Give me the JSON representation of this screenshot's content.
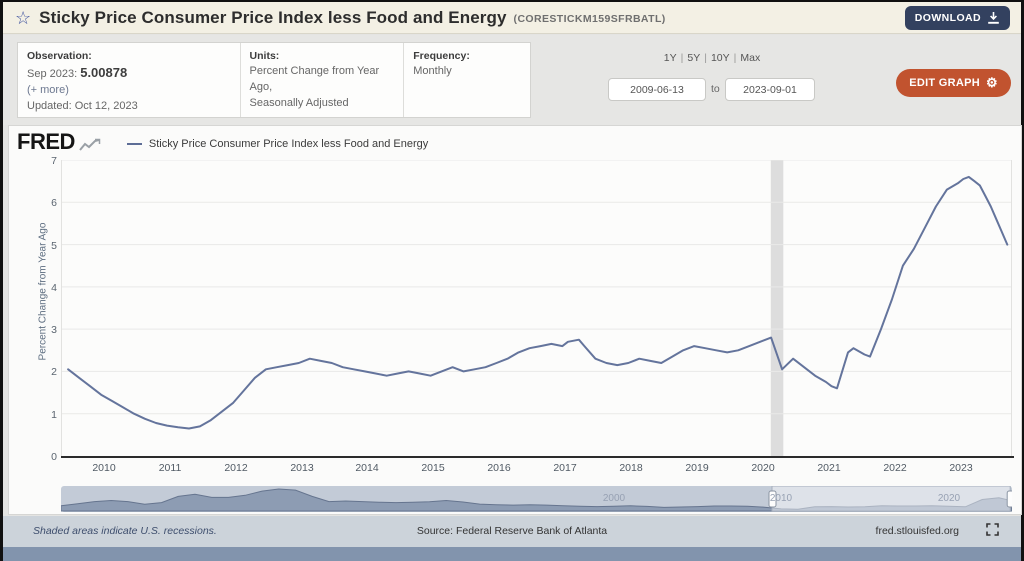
{
  "header": {
    "title": "Sticky Price Consumer Price Index less Food and Energy",
    "series_id": "(CORESTICKM159SFRBATL)",
    "download_label": "DOWNLOAD"
  },
  "controls": {
    "observation": {
      "label": "Observation:",
      "value_prefix": "Sep 2023: ",
      "value": "5.00878",
      "more": "(+ more)",
      "updated": "Updated: Oct 12, 2023"
    },
    "units": {
      "label": "Units:",
      "line1": "Percent Change from Year Ago,",
      "line2": "Seasonally Adjusted"
    },
    "frequency": {
      "label": "Frequency:",
      "value": "Monthly"
    },
    "range_presets": [
      "1Y",
      "5Y",
      "10Y",
      "Max"
    ],
    "preset_sep": "|",
    "date_from": "2009-06-13",
    "to_label": "to",
    "date_to": "2023-09-01",
    "edit_graph_label": "EDIT GRAPH"
  },
  "graph": {
    "brand": "FRED",
    "legend": "Sticky Price Consumer Price Index less Food and Energy"
  },
  "footer": {
    "recessions_note": "Shaded areas indicate U.S. recessions.",
    "source": "Source: Federal Reserve Bank of Atlanta",
    "site": "fred.stlouisfed.org"
  },
  "colors": {
    "header_bg": "#f3f0e4",
    "download_btn": "#33415f",
    "edit_btn": "#c1532f",
    "line": "#64749c",
    "recession_band": "#dddddd",
    "mini_fill": "#8494ad",
    "mini_bg": "#c3cbd7",
    "footer_bg": "#ccd3da",
    "bottom_bar": "#8294ad"
  },
  "chart_data": {
    "type": "line",
    "title": "Sticky Price Consumer Price Index less Food and Energy",
    "ylabel": "Percent Change from Year Ago",
    "ylim": [
      0,
      7
    ],
    "yticks": [
      0,
      1,
      2,
      3,
      4,
      5,
      6,
      7
    ],
    "xticks": [
      2010,
      2011,
      2012,
      2013,
      2014,
      2015,
      2016,
      2017,
      2018,
      2019,
      2020,
      2021,
      2022,
      2023
    ],
    "x_range": [
      2009.35,
      2023.78
    ],
    "grid": true,
    "legend_position": "top-left",
    "recession_bands": [
      [
        2020.12,
        2020.31
      ]
    ],
    "series": [
      {
        "name": "Sticky Price Consumer Price Index less Food and Energy",
        "units": "Percent Change from Year Ago",
        "points": [
          [
            "2009-06",
            2.05
          ],
          [
            "2009-08",
            1.85
          ],
          [
            "2009-10",
            1.65
          ],
          [
            "2009-12",
            1.45
          ],
          [
            "2010-02",
            1.3
          ],
          [
            "2010-04",
            1.15
          ],
          [
            "2010-06",
            1.0
          ],
          [
            "2010-08",
            0.88
          ],
          [
            "2010-10",
            0.78
          ],
          [
            "2010-12",
            0.72
          ],
          [
            "2011-02",
            0.68
          ],
          [
            "2011-04",
            0.65
          ],
          [
            "2011-06",
            0.7
          ],
          [
            "2011-08",
            0.85
          ],
          [
            "2011-10",
            1.05
          ],
          [
            "2011-12",
            1.25
          ],
          [
            "2012-02",
            1.55
          ],
          [
            "2012-04",
            1.85
          ],
          [
            "2012-06",
            2.05
          ],
          [
            "2012-08",
            2.1
          ],
          [
            "2012-10",
            2.15
          ],
          [
            "2012-12",
            2.2
          ],
          [
            "2013-02",
            2.3
          ],
          [
            "2013-04",
            2.25
          ],
          [
            "2013-06",
            2.2
          ],
          [
            "2013-08",
            2.1
          ],
          [
            "2013-10",
            2.05
          ],
          [
            "2013-12",
            2.0
          ],
          [
            "2014-02",
            1.95
          ],
          [
            "2014-04",
            1.9
          ],
          [
            "2014-06",
            1.95
          ],
          [
            "2014-08",
            2.0
          ],
          [
            "2014-10",
            1.95
          ],
          [
            "2014-12",
            1.9
          ],
          [
            "2015-02",
            2.0
          ],
          [
            "2015-04",
            2.1
          ],
          [
            "2015-06",
            2.0
          ],
          [
            "2015-08",
            2.05
          ],
          [
            "2015-10",
            2.1
          ],
          [
            "2015-12",
            2.2
          ],
          [
            "2016-02",
            2.3
          ],
          [
            "2016-04",
            2.45
          ],
          [
            "2016-06",
            2.55
          ],
          [
            "2016-08",
            2.6
          ],
          [
            "2016-10",
            2.65
          ],
          [
            "2016-12",
            2.6
          ],
          [
            "2017-01",
            2.7
          ],
          [
            "2017-03",
            2.75
          ],
          [
            "2017-04",
            2.6
          ],
          [
            "2017-06",
            2.3
          ],
          [
            "2017-08",
            2.2
          ],
          [
            "2017-10",
            2.15
          ],
          [
            "2017-12",
            2.2
          ],
          [
            "2018-02",
            2.3
          ],
          [
            "2018-04",
            2.25
          ],
          [
            "2018-06",
            2.2
          ],
          [
            "2018-08",
            2.35
          ],
          [
            "2018-10",
            2.5
          ],
          [
            "2018-12",
            2.6
          ],
          [
            "2019-02",
            2.55
          ],
          [
            "2019-04",
            2.5
          ],
          [
            "2019-06",
            2.45
          ],
          [
            "2019-08",
            2.5
          ],
          [
            "2019-10",
            2.6
          ],
          [
            "2019-12",
            2.7
          ],
          [
            "2020-01",
            2.75
          ],
          [
            "2020-02",
            2.8
          ],
          [
            "2020-04",
            2.05
          ],
          [
            "2020-06",
            2.3
          ],
          [
            "2020-08",
            2.1
          ],
          [
            "2020-10",
            1.9
          ],
          [
            "2020-12",
            1.75
          ],
          [
            "2021-01",
            1.65
          ],
          [
            "2021-02",
            1.6
          ],
          [
            "2021-04",
            2.45
          ],
          [
            "2021-05",
            2.55
          ],
          [
            "2021-07",
            2.4
          ],
          [
            "2021-08",
            2.35
          ],
          [
            "2021-10",
            3.0
          ],
          [
            "2021-12",
            3.7
          ],
          [
            "2022-02",
            4.5
          ],
          [
            "2022-04",
            4.9
          ],
          [
            "2022-06",
            5.4
          ],
          [
            "2022-08",
            5.9
          ],
          [
            "2022-10",
            6.3
          ],
          [
            "2022-12",
            6.45
          ],
          [
            "2023-01",
            6.55
          ],
          [
            "2023-02",
            6.6
          ],
          [
            "2023-03",
            6.5
          ],
          [
            "2023-04",
            6.4
          ],
          [
            "2023-05",
            6.15
          ],
          [
            "2023-06",
            5.9
          ],
          [
            "2023-07",
            5.6
          ],
          [
            "2023-08",
            5.3
          ],
          [
            "2023-09",
            5.0
          ]
        ]
      }
    ],
    "minimap": {
      "x_range": [
        1967,
        2023.78
      ],
      "selected": [
        2009.45,
        2023.67
      ],
      "vmax": 11,
      "labels": [
        {
          "text": "2000",
          "year": 2000
        },
        {
          "text": "2010",
          "year": 2010
        },
        {
          "text": "2020",
          "year": 2020
        }
      ],
      "points": [
        [
          1967,
          2.5
        ],
        [
          1968,
          3.5
        ],
        [
          1969,
          4.5
        ],
        [
          1970,
          5.0
        ],
        [
          1971,
          4.5
        ],
        [
          1972,
          3.2
        ],
        [
          1973,
          4.0
        ],
        [
          1974,
          7.0
        ],
        [
          1975,
          8.0
        ],
        [
          1976,
          6.5
        ],
        [
          1977,
          6.5
        ],
        [
          1978,
          7.5
        ],
        [
          1979,
          9.5
        ],
        [
          1980,
          10.5
        ],
        [
          1981,
          10.0
        ],
        [
          1982,
          7.0
        ],
        [
          1983,
          4.5
        ],
        [
          1984,
          4.8
        ],
        [
          1985,
          4.5
        ],
        [
          1986,
          4.2
        ],
        [
          1987,
          4.0
        ],
        [
          1988,
          4.2
        ],
        [
          1989,
          4.4
        ],
        [
          1990,
          5.0
        ],
        [
          1991,
          4.3
        ],
        [
          1992,
          3.3
        ],
        [
          1993,
          3.0
        ],
        [
          1994,
          2.8
        ],
        [
          1995,
          3.0
        ],
        [
          1996,
          2.8
        ],
        [
          1997,
          2.5
        ],
        [
          1998,
          2.3
        ],
        [
          1999,
          2.1
        ],
        [
          2000,
          2.3
        ],
        [
          2001,
          2.5
        ],
        [
          2002,
          2.2
        ],
        [
          2003,
          1.7
        ],
        [
          2004,
          1.9
        ],
        [
          2005,
          2.1
        ],
        [
          2006,
          2.4
        ],
        [
          2007,
          2.4
        ],
        [
          2008,
          2.3
        ],
        [
          2009,
          1.8
        ],
        [
          2010,
          1.0
        ],
        [
          2011,
          0.8
        ],
        [
          2012,
          2.0
        ],
        [
          2013,
          2.1
        ],
        [
          2014,
          1.9
        ],
        [
          2015,
          2.0
        ],
        [
          2016,
          2.5
        ],
        [
          2017,
          2.4
        ],
        [
          2018,
          2.4
        ],
        [
          2019,
          2.5
        ],
        [
          2020,
          2.3
        ],
        [
          2021,
          2.0
        ],
        [
          2022,
          5.5
        ],
        [
          2023,
          6.3
        ],
        [
          2023.7,
          5.0
        ]
      ]
    }
  }
}
